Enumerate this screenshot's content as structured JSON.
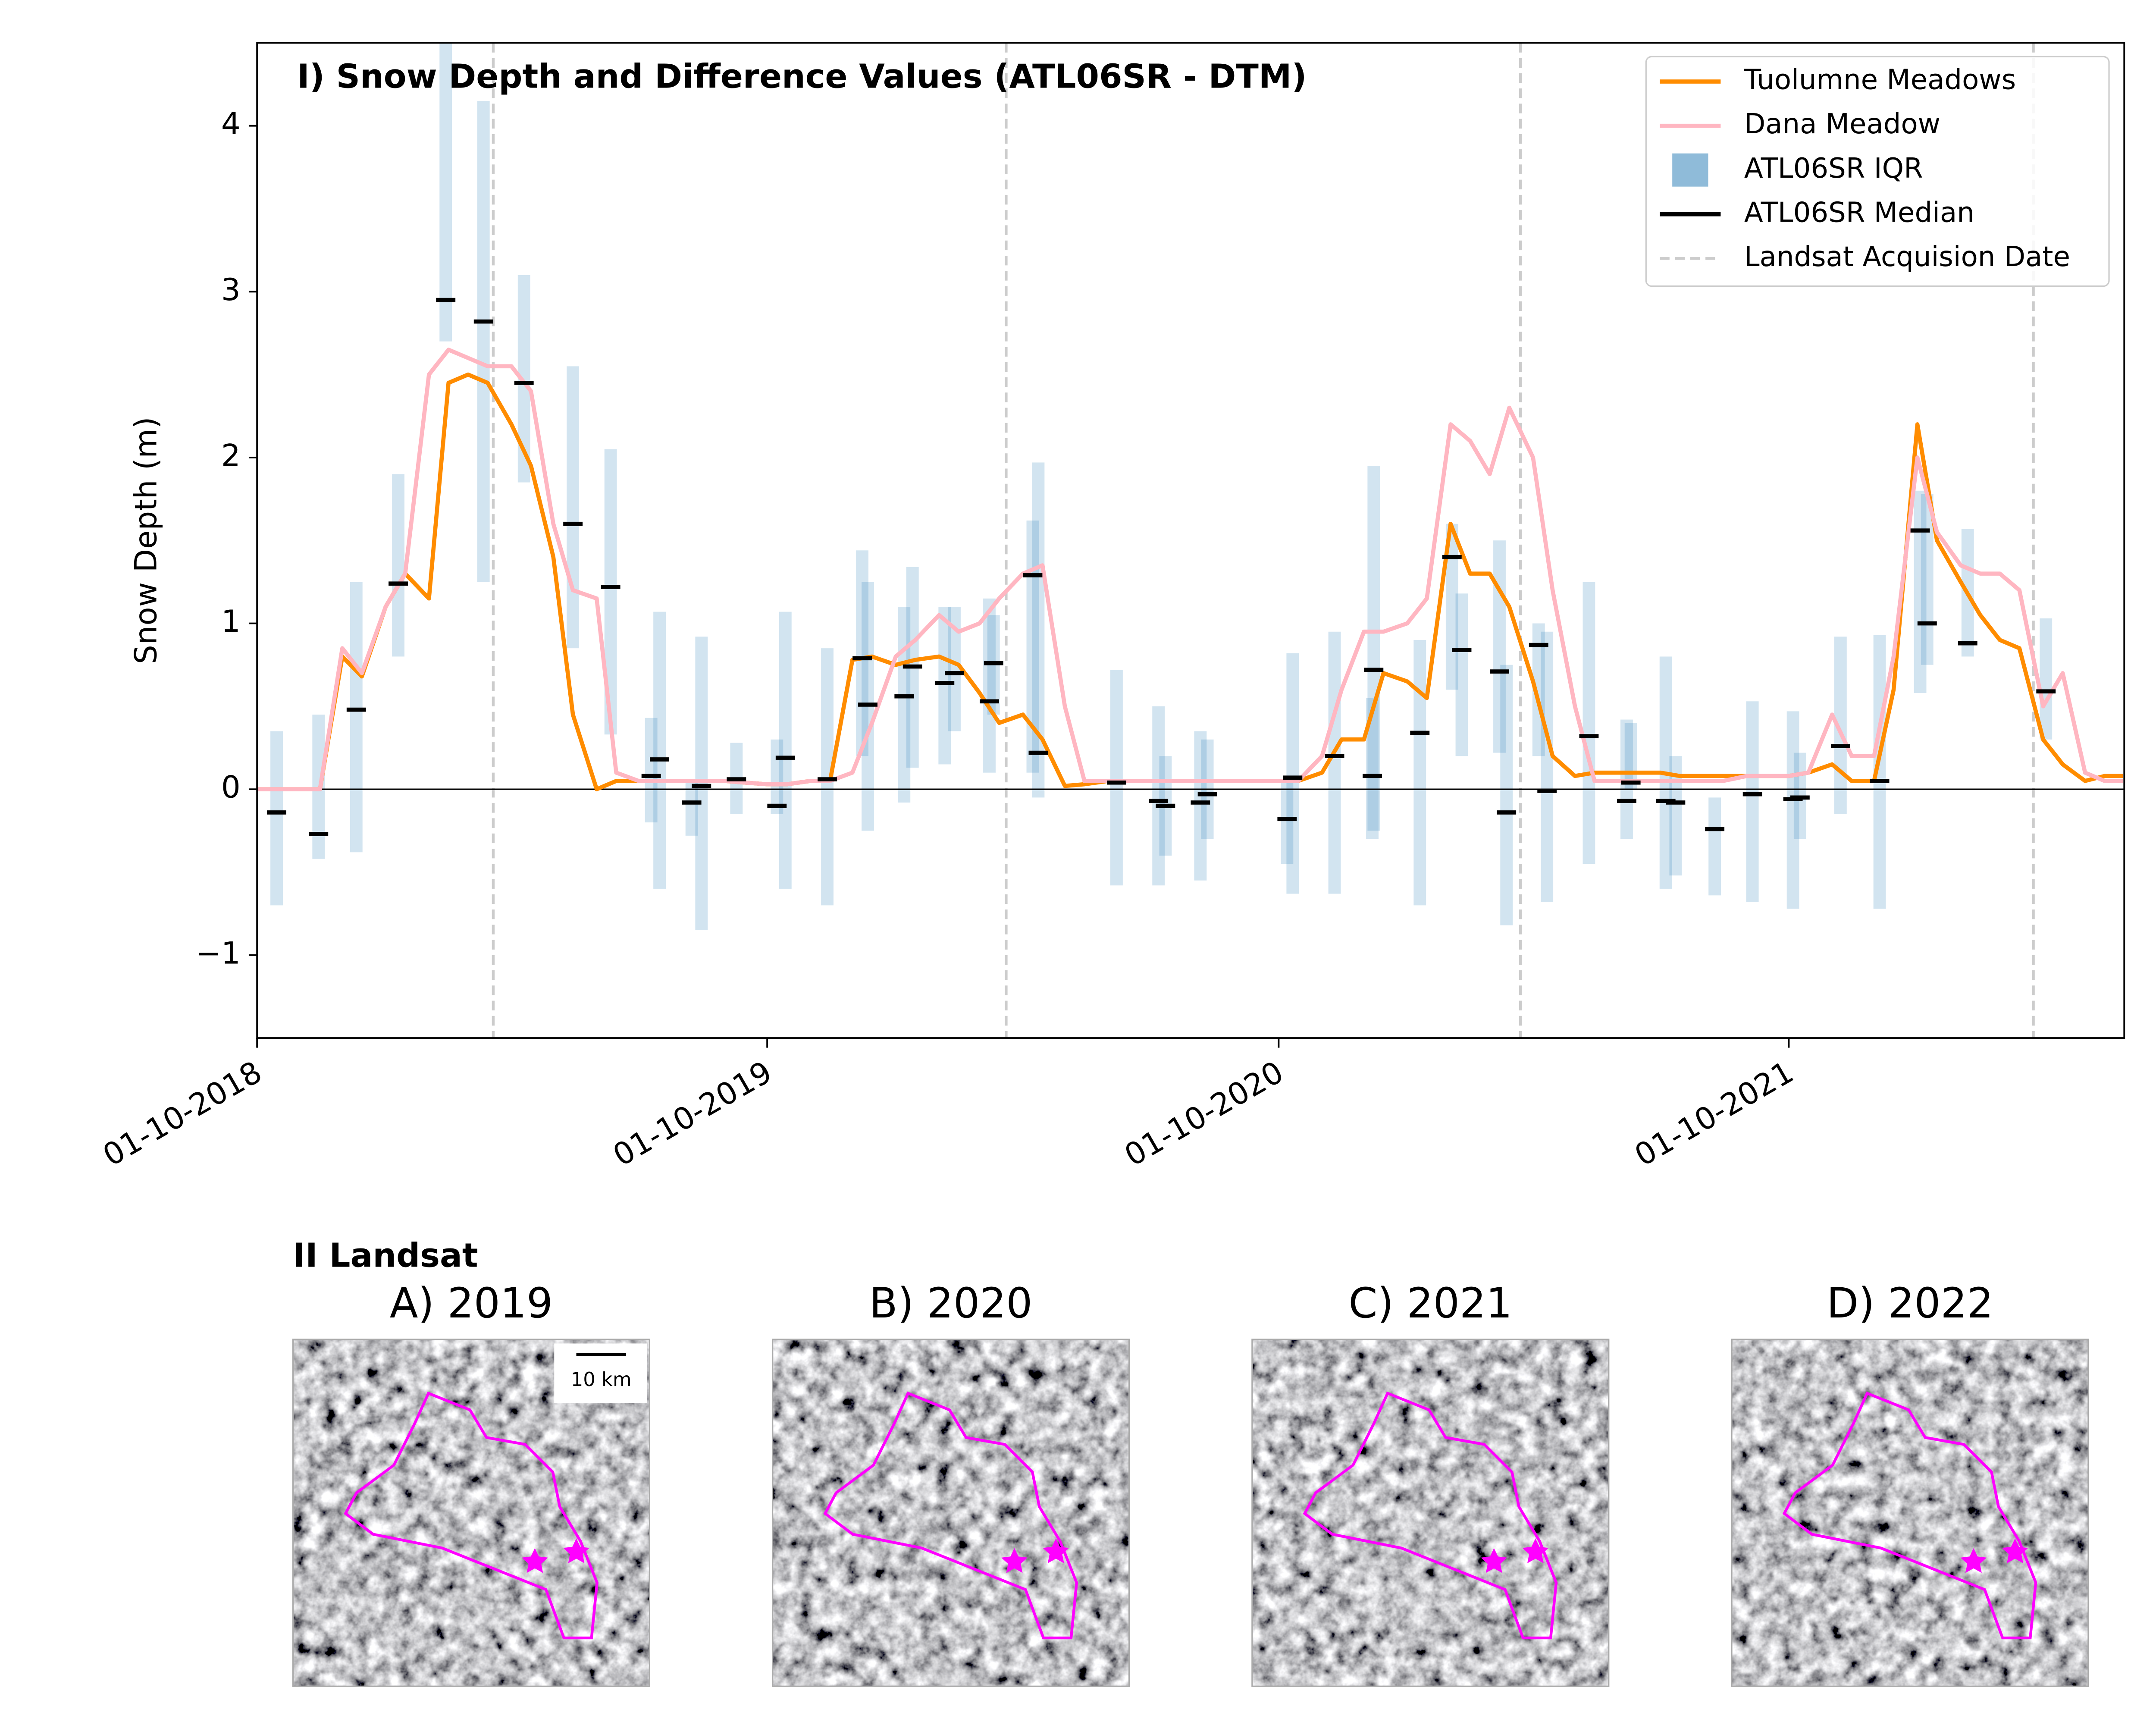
{
  "chart_data": {
    "type": "line",
    "title": "I) Snow Depth and Difference Values (ATL06SR - DTM)",
    "y_label": "Snow Depth (m)",
    "xlim": [
      "2018-10-01",
      "2022-05-29"
    ],
    "xticks": [
      {
        "value": "2018-10-01",
        "label": "01-10-2018"
      },
      {
        "value": "2019-10-01",
        "label": "01-10-2019"
      },
      {
        "value": "2020-10-01",
        "label": "01-10-2020"
      },
      {
        "value": "2021-10-01",
        "label": "01-10-2021"
      }
    ],
    "ylim": [
      -1.5,
      4.5
    ],
    "yticks": [
      {
        "value": -1,
        "label": "−1"
      },
      0,
      1,
      2,
      3,
      4
    ],
    "reference_line": 0,
    "grid": false,
    "legend": "upper right",
    "x": [
      "2018-10-01",
      "2018-10-15",
      "2018-11-01",
      "2018-11-15",
      "2018-12-01",
      "2018-12-15",
      "2019-01-01",
      "2019-01-15",
      "2019-02-01",
      "2019-02-15",
      "2019-03-01",
      "2019-03-15",
      "2019-04-01",
      "2019-04-15",
      "2019-05-01",
      "2019-05-15",
      "2019-06-01",
      "2019-06-15",
      "2019-07-01",
      "2019-07-15",
      "2019-08-01",
      "2019-08-15",
      "2019-09-01",
      "2019-09-15",
      "2019-10-01",
      "2019-10-15",
      "2019-11-01",
      "2019-11-15",
      "2019-12-01",
      "2019-12-15",
      "2020-01-01",
      "2020-01-15",
      "2020-02-01",
      "2020-02-15",
      "2020-03-01",
      "2020-03-15",
      "2020-04-01",
      "2020-04-15",
      "2020-05-01",
      "2020-05-15",
      "2020-06-01",
      "2020-06-15",
      "2020-07-01",
      "2020-07-15",
      "2020-08-01",
      "2020-08-15",
      "2020-09-01",
      "2020-09-15",
      "2020-10-01",
      "2020-10-15",
      "2020-11-01",
      "2020-11-15",
      "2020-12-01",
      "2020-12-15",
      "2021-01-01",
      "2021-01-15",
      "2021-02-01",
      "2021-02-15",
      "2021-03-01",
      "2021-03-15",
      "2021-04-01",
      "2021-04-15",
      "2021-05-01",
      "2021-05-15",
      "2021-06-01",
      "2021-06-15",
      "2021-07-01",
      "2021-07-15",
      "2021-08-01",
      "2021-08-15",
      "2021-09-01",
      "2021-09-15",
      "2021-10-01",
      "2021-10-15",
      "2021-11-01",
      "2021-11-15",
      "2021-12-01",
      "2021-12-15",
      "2022-01-01",
      "2022-01-15",
      "2022-02-01",
      "2022-02-15",
      "2022-03-01",
      "2022-03-15",
      "2022-04-01",
      "2022-04-15",
      "2022-05-01",
      "2022-05-15",
      "2022-05-28"
    ],
    "series": [
      {
        "name": "Tuolumne Meadows",
        "color": "#ff8c00",
        "values": [
          0,
          0,
          0,
          0,
          0.8,
          0.68,
          1.1,
          1.3,
          1.15,
          2.45,
          2.5,
          2.45,
          2.2,
          1.95,
          1.4,
          0.45,
          0,
          0.05,
          0.05,
          0.05,
          0.05,
          0.05,
          0.05,
          0.04,
          0.03,
          0.03,
          0.05,
          0.05,
          0.78,
          0.8,
          0.75,
          0.78,
          0.8,
          0.75,
          0.58,
          0.4,
          0.45,
          0.3,
          0.02,
          0.03,
          0.05,
          0.05,
          0.05,
          0.05,
          0.05,
          0.05,
          0.05,
          0.05,
          0.05,
          0.05,
          0.1,
          0.3,
          0.3,
          0.7,
          0.65,
          0.55,
          1.6,
          1.3,
          1.3,
          1.1,
          0.65,
          0.2,
          0.08,
          0.1,
          0.1,
          0.1,
          0.1,
          0.08,
          0.08,
          0.08,
          0.08,
          0.08,
          0.08,
          0.1,
          0.15,
          0.05,
          0.05,
          0.6,
          2.2,
          1.5,
          1.25,
          1.05,
          0.9,
          0.85,
          0.3,
          0.15,
          0.05,
          0.08,
          0.08
        ]
      },
      {
        "name": "Dana Meadow",
        "color": "#ffb6c1",
        "values": [
          0,
          0,
          0,
          0,
          0.85,
          0.7,
          1.1,
          1.3,
          2.5,
          2.65,
          2.6,
          2.55,
          2.55,
          2.4,
          1.6,
          1.2,
          1.15,
          0.1,
          0.05,
          0.05,
          0.05,
          0.05,
          0.05,
          0.04,
          0.03,
          0.03,
          0.05,
          0.05,
          0.1,
          0.4,
          0.8,
          0.9,
          1.05,
          0.95,
          1.0,
          1.15,
          1.3,
          1.35,
          0.5,
          0.05,
          0.05,
          0.05,
          0.05,
          0.05,
          0.05,
          0.05,
          0.05,
          0.05,
          0.05,
          0.05,
          0.2,
          0.6,
          0.95,
          0.95,
          1.0,
          1.15,
          2.2,
          2.1,
          1.9,
          2.3,
          2.0,
          1.2,
          0.5,
          0.05,
          0.05,
          0.05,
          0.05,
          0.05,
          0.05,
          0.05,
          0.08,
          0.08,
          0.08,
          0.1,
          0.45,
          0.2,
          0.2,
          0.8,
          2.0,
          1.55,
          1.35,
          1.3,
          1.3,
          1.2,
          0.5,
          0.7,
          0.1,
          0.05,
          0.05
        ]
      }
    ],
    "atl06sr": {
      "iqr_name": "ATL06SR IQR",
      "median_name": "ATL06SR Median",
      "color": "#1f77b4",
      "median_color": "#000000",
      "x": [
        "2018-10-15",
        "2018-11-14",
        "2018-12-11",
        "2019-01-10",
        "2019-02-13",
        "2019-03-12",
        "2019-04-10",
        "2019-05-15",
        "2019-06-11",
        "2019-07-10",
        "2019-07-16",
        "2019-08-08",
        "2019-08-15",
        "2019-09-09",
        "2019-10-08",
        "2019-10-14",
        "2019-11-13",
        "2019-12-08",
        "2019-12-12",
        "2020-01-07",
        "2020-01-13",
        "2020-02-05",
        "2020-02-12",
        "2020-03-08",
        "2020-03-11",
        "2020-04-08",
        "2020-04-12",
        "2020-06-07",
        "2020-07-07",
        "2020-07-12",
        "2020-08-06",
        "2020-08-11",
        "2020-10-07",
        "2020-10-11",
        "2020-11-10",
        "2020-12-07",
        "2020-12-08",
        "2021-01-10",
        "2021-02-02",
        "2021-02-09",
        "2021-03-08",
        "2021-03-13",
        "2021-04-05",
        "2021-04-11",
        "2021-05-11",
        "2021-06-07",
        "2021-06-10",
        "2021-07-05",
        "2021-07-12",
        "2021-08-09",
        "2021-09-05",
        "2021-10-04",
        "2021-10-09",
        "2021-11-07",
        "2021-12-05",
        "2022-01-03",
        "2022-01-08",
        "2022-02-06",
        "2022-04-03"
      ],
      "q1": [
        -0.7,
        -0.42,
        -0.38,
        0.8,
        2.7,
        1.25,
        1.85,
        0.85,
        0.33,
        -0.2,
        -0.6,
        -0.28,
        -0.85,
        -0.15,
        -0.15,
        -0.6,
        -0.7,
        0.2,
        -0.25,
        -0.08,
        0.13,
        0.15,
        0.35,
        0.1,
        0.45,
        0.1,
        -0.05,
        -0.58,
        -0.58,
        -0.4,
        -0.55,
        -0.3,
        -0.45,
        -0.63,
        -0.63,
        -0.3,
        -0.25,
        -0.7,
        0.6,
        0.2,
        0.22,
        -0.82,
        0.2,
        -0.68,
        -0.45,
        -0.3,
        0.0,
        -0.6,
        -0.52,
        -0.64,
        -0.68,
        -0.72,
        -0.3,
        -0.15,
        -0.72,
        0.58,
        0.75,
        0.8,
        0.3
      ],
      "q3": [
        0.35,
        0.45,
        1.25,
        1.9,
        4.7,
        4.15,
        3.1,
        2.55,
        2.05,
        0.43,
        1.07,
        0.05,
        0.92,
        0.28,
        0.3,
        1.07,
        0.85,
        1.44,
        1.25,
        1.1,
        1.34,
        1.1,
        1.1,
        1.15,
        1.05,
        1.62,
        1.97,
        0.72,
        0.5,
        0.2,
        0.35,
        0.3,
        0.05,
        0.82,
        0.95,
        0.55,
        1.95,
        0.9,
        1.6,
        1.18,
        1.5,
        0.75,
        1.0,
        0.95,
        1.25,
        0.42,
        0.4,
        0.8,
        0.2,
        -0.05,
        0.53,
        0.47,
        0.22,
        0.92,
        0.93,
        1.8,
        1.78,
        1.57,
        1.03
      ],
      "median": [
        -0.14,
        -0.27,
        0.48,
        1.24,
        2.95,
        2.82,
        2.45,
        1.6,
        1.22,
        0.08,
        0.18,
        -0.08,
        0.02,
        0.06,
        -0.1,
        0.19,
        0.06,
        0.79,
        0.51,
        0.56,
        0.74,
        0.64,
        0.7,
        0.53,
        0.76,
        1.29,
        0.22,
        0.04,
        -0.07,
        -0.1,
        -0.08,
        -0.03,
        -0.18,
        0.07,
        0.2,
        0.08,
        0.72,
        0.34,
        1.4,
        0.84,
        0.71,
        -0.14,
        0.87,
        -0.01,
        0.32,
        -0.07,
        0.04,
        -0.07,
        -0.08,
        -0.24,
        -0.03,
        -0.06,
        -0.05,
        0.26,
        0.05,
        1.56,
        1.0,
        0.88,
        0.59
      ]
    },
    "landsat": {
      "name": "Landsat Acquision Date",
      "color": "#cccccc",
      "dates": [
        "2019-03-19",
        "2020-03-20",
        "2021-03-23",
        "2022-03-25"
      ]
    }
  },
  "landsat_panel": {
    "title": "II Landsat",
    "scale_bar": "10 km",
    "images": [
      {
        "title": "A) 2019"
      },
      {
        "title": "B) 2020"
      },
      {
        "title": "C) 2021"
      },
      {
        "title": "D) 2022"
      }
    ]
  }
}
